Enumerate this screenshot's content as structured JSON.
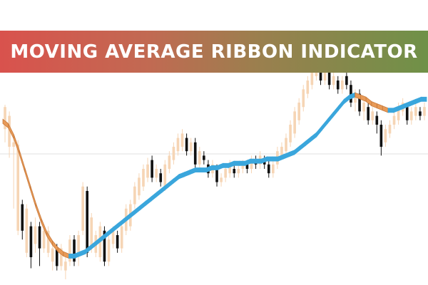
{
  "banner": {
    "title": "MOVING AVERAGE RIBBON INDICATOR"
  },
  "colors": {
    "bear_candle": "#111111",
    "bull_candle": "#f6d5b5",
    "ribbon_bull": "#3aa6dc",
    "ribbon_bear": "#e89a57",
    "ribbon_bear_dark": "#c87a3c",
    "grid": "#e2e2e2"
  },
  "chart_data": {
    "type": "line",
    "title": "MOVING AVERAGE RIBBON INDICATOR",
    "xlabel": "",
    "ylabel": "",
    "grid": false,
    "legend": "none",
    "ylim": [
      0,
      100
    ],
    "candles": [
      [
        1,
        68,
        78,
        62,
        79
      ],
      [
        2,
        60,
        74,
        55,
        76
      ],
      [
        3,
        60,
        62,
        32,
        64
      ],
      [
        4,
        22,
        61,
        20,
        63
      ],
      [
        5,
        34,
        22,
        18,
        36
      ],
      [
        6,
        12,
        32,
        10,
        34
      ],
      [
        7,
        24,
        10,
        5,
        26
      ],
      [
        8,
        16,
        24,
        12,
        28
      ],
      [
        9,
        24,
        14,
        6,
        26
      ],
      [
        10,
        14,
        22,
        12,
        25
      ],
      [
        11,
        12,
        22,
        10,
        24
      ],
      [
        12,
        8,
        14,
        4,
        16
      ],
      [
        13,
        14,
        6,
        4,
        16
      ],
      [
        14,
        6,
        14,
        4,
        16
      ],
      [
        15,
        4,
        8,
        0,
        10
      ],
      [
        16,
        8,
        18,
        6,
        20
      ],
      [
        17,
        18,
        8,
        6,
        20
      ],
      [
        18,
        12,
        20,
        6,
        22
      ],
      [
        19,
        22,
        42,
        20,
        44
      ],
      [
        20,
        40,
        12,
        10,
        42
      ],
      [
        21,
        14,
        28,
        12,
        30
      ],
      [
        22,
        12,
        20,
        10,
        22
      ],
      [
        23,
        10,
        24,
        8,
        26
      ],
      [
        24,
        22,
        8,
        6,
        24
      ],
      [
        25,
        8,
        18,
        6,
        20
      ],
      [
        26,
        16,
        22,
        14,
        24
      ],
      [
        27,
        20,
        14,
        12,
        22
      ],
      [
        28,
        14,
        24,
        12,
        26
      ],
      [
        29,
        22,
        32,
        20,
        34
      ],
      [
        30,
        24,
        34,
        22,
        36
      ],
      [
        31,
        34,
        42,
        32,
        44
      ],
      [
        32,
        38,
        46,
        36,
        48
      ],
      [
        33,
        42,
        50,
        40,
        52
      ],
      [
        34,
        46,
        52,
        44,
        55
      ],
      [
        35,
        54,
        46,
        44,
        56
      ],
      [
        36,
        46,
        50,
        44,
        52
      ],
      [
        37,
        48,
        44,
        42,
        50
      ],
      [
        38,
        42,
        52,
        40,
        54
      ],
      [
        39,
        50,
        56,
        48,
        58
      ],
      [
        40,
        54,
        60,
        52,
        62
      ],
      [
        41,
        58,
        64,
        56,
        66
      ],
      [
        42,
        60,
        66,
        58,
        68
      ],
      [
        43,
        64,
        58,
        56,
        66
      ],
      [
        44,
        58,
        62,
        56,
        64
      ],
      [
        45,
        62,
        52,
        50,
        64
      ],
      [
        46,
        52,
        58,
        50,
        60
      ],
      [
        47,
        56,
        54,
        52,
        58
      ],
      [
        48,
        52,
        48,
        46,
        54
      ],
      [
        49,
        48,
        52,
        46,
        54
      ],
      [
        50,
        50,
        44,
        42,
        52
      ],
      [
        51,
        44,
        46,
        42,
        48
      ],
      [
        52,
        46,
        50,
        44,
        52
      ],
      [
        53,
        48,
        52,
        46,
        54
      ],
      [
        54,
        50,
        48,
        46,
        52
      ],
      [
        55,
        48,
        50,
        46,
        52
      ],
      [
        56,
        50,
        52,
        48,
        54
      ],
      [
        57,
        52,
        50,
        48,
        54
      ],
      [
        58,
        50,
        54,
        48,
        56
      ],
      [
        59,
        54,
        52,
        50,
        56
      ],
      [
        60,
        52,
        56,
        50,
        58
      ],
      [
        61,
        54,
        52,
        50,
        56
      ],
      [
        62,
        52,
        48,
        46,
        54
      ],
      [
        63,
        48,
        52,
        46,
        54
      ],
      [
        64,
        52,
        58,
        50,
        60
      ],
      [
        65,
        56,
        60,
        54,
        62
      ],
      [
        66,
        58,
        64,
        56,
        66
      ],
      [
        67,
        62,
        70,
        60,
        72
      ],
      [
        68,
        66,
        76,
        64,
        78
      ],
      [
        69,
        72,
        80,
        70,
        82
      ],
      [
        70,
        78,
        86,
        76,
        88
      ],
      [
        71,
        84,
        90,
        82,
        92
      ],
      [
        72,
        88,
        94,
        86,
        96
      ],
      [
        73,
        92,
        98,
        90,
        100
      ],
      [
        74,
        96,
        90,
        88,
        98
      ],
      [
        75,
        90,
        94,
        88,
        96
      ],
      [
        76,
        94,
        88,
        86,
        96
      ],
      [
        77,
        88,
        92,
        86,
        94
      ],
      [
        78,
        90,
        86,
        84,
        92
      ],
      [
        79,
        86,
        90,
        84,
        92
      ],
      [
        80,
        92,
        88,
        86,
        94
      ],
      [
        81,
        88,
        80,
        78,
        90
      ],
      [
        82,
        80,
        84,
        76,
        86
      ],
      [
        83,
        84,
        76,
        74,
        86
      ],
      [
        84,
        76,
        80,
        72,
        82
      ],
      [
        85,
        78,
        72,
        70,
        80
      ],
      [
        86,
        72,
        76,
        70,
        78
      ],
      [
        87,
        74,
        70,
        66,
        76
      ],
      [
        88,
        70,
        60,
        56,
        72
      ],
      [
        89,
        62,
        68,
        60,
        70
      ],
      [
        90,
        66,
        70,
        64,
        72
      ],
      [
        91,
        70,
        74,
        68,
        76
      ],
      [
        92,
        72,
        78,
        70,
        80
      ],
      [
        93,
        76,
        80,
        74,
        82
      ],
      [
        94,
        78,
        72,
        70,
        80
      ],
      [
        95,
        72,
        76,
        70,
        78
      ],
      [
        96,
        74,
        78,
        72,
        80
      ],
      [
        97,
        76,
        74,
        72,
        78
      ],
      [
        98,
        74,
        78,
        72,
        80
      ]
    ],
    "series": [
      {
        "values": [
          72,
          70,
          65,
          58,
          50,
          42,
          34,
          27,
          21,
          17,
          14,
          12,
          11,
          11,
          12,
          13,
          15,
          17,
          19,
          21,
          23,
          25,
          27,
          29,
          31,
          33,
          35,
          37,
          39,
          41,
          43,
          45,
          47,
          48,
          49,
          50,
          50,
          50,
          51,
          51,
          52,
          52,
          53,
          53,
          53,
          54,
          54,
          54,
          55,
          55,
          55,
          56,
          57,
          58,
          60,
          62,
          64,
          66,
          69,
          72,
          75,
          78,
          81,
          83,
          84,
          83,
          82,
          80,
          79,
          78,
          77,
          77,
          78,
          79,
          80,
          81,
          82,
          82
        ]
      },
      {
        "values": [
          71,
          69,
          64,
          57,
          49,
          41,
          33,
          26,
          20,
          16,
          13,
          11,
          10,
          10,
          11,
          12,
          14,
          16,
          18,
          20,
          22,
          24,
          26,
          28,
          30,
          32,
          34,
          36,
          38,
          40,
          42,
          44,
          46,
          47,
          48,
          49,
          49,
          49,
          50,
          50,
          51,
          51,
          52,
          52,
          52,
          53,
          53,
          53,
          54,
          54,
          54,
          55,
          56,
          57,
          59,
          61,
          63,
          65,
          68,
          71,
          74,
          77,
          80,
          82,
          83,
          82,
          81,
          79,
          78,
          77,
          76,
          76,
          77,
          78,
          79,
          80,
          81,
          81
        ]
      }
    ]
  }
}
